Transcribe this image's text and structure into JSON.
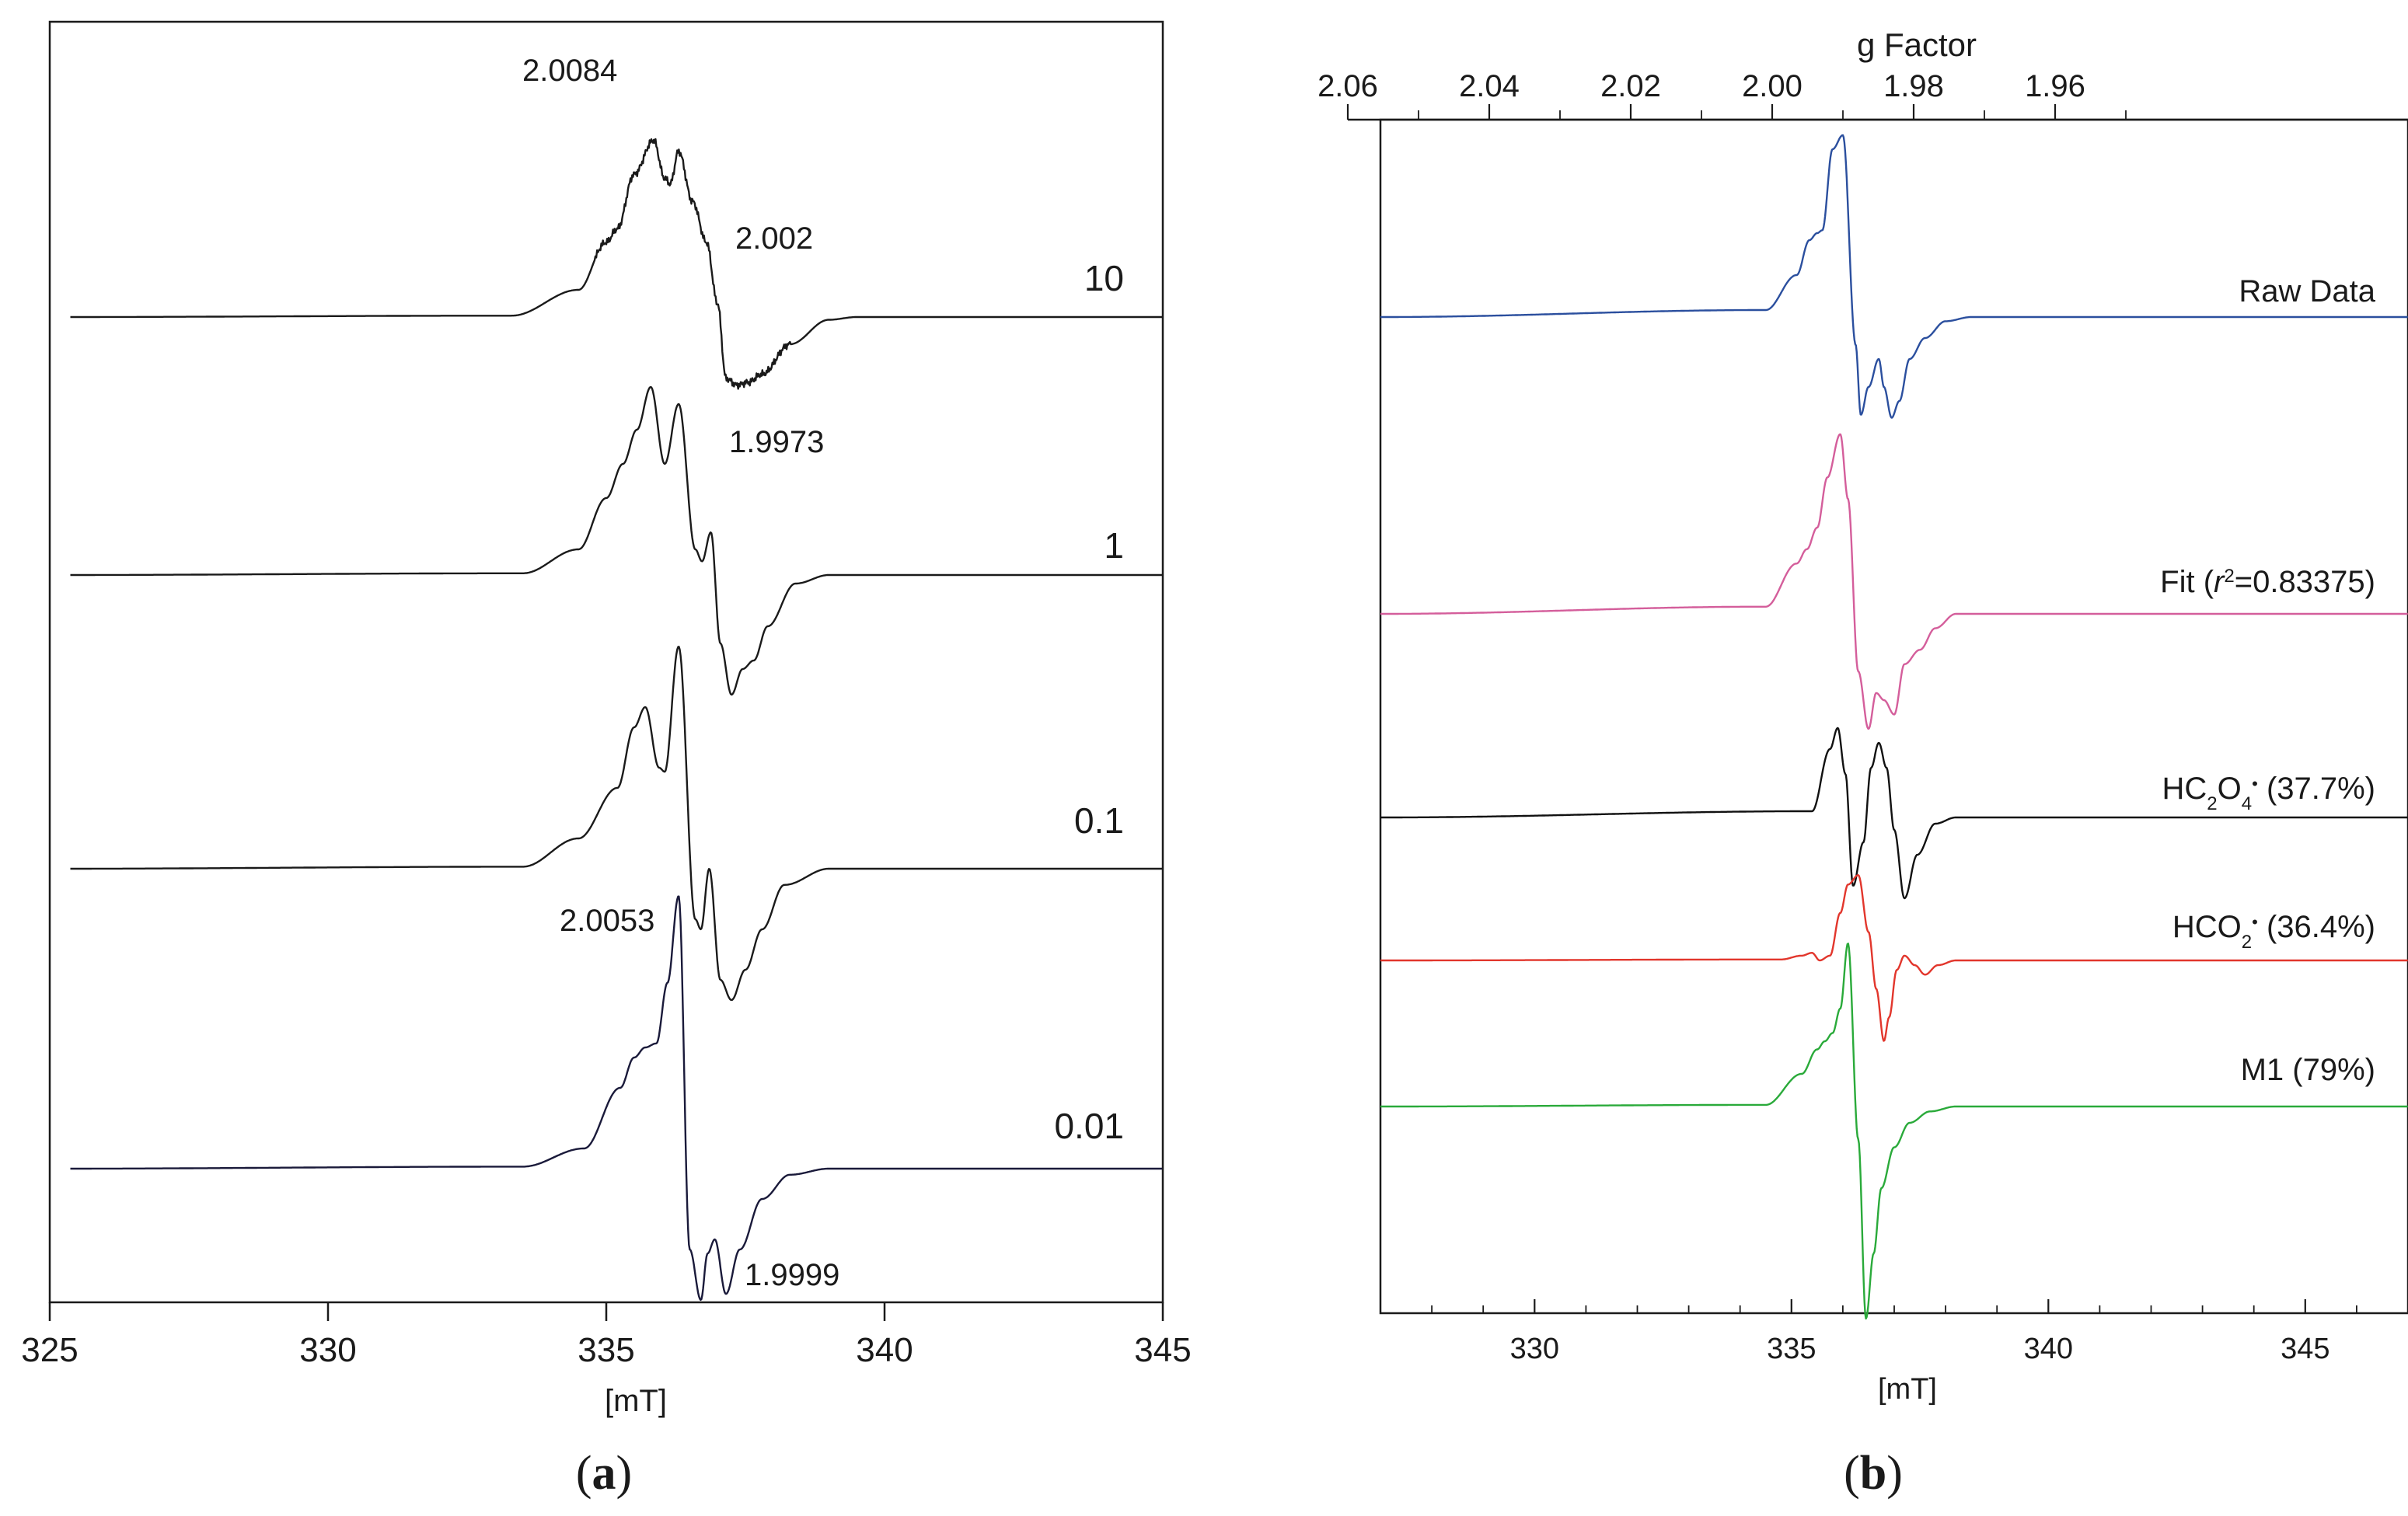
{
  "chart_data": [
    {
      "panel": "(a)",
      "panel_letter": "a",
      "type": "line",
      "x_unit_label": "[mT]",
      "xlim": [
        325,
        345
      ],
      "xticks": [
        325,
        330,
        335,
        340,
        345
      ],
      "series": [
        {
          "name": "10",
          "color": "#1a1a1a",
          "noisy": true,
          "x": [
            325,
            333.3,
            334.5,
            335.0,
            335.2,
            335.5,
            335.85,
            336.05,
            336.15,
            336.3,
            336.55,
            336.8,
            337.0,
            337.15,
            337.35,
            337.55,
            337.8,
            338.3,
            339.0,
            339.5,
            345
          ],
          "y": [
            0,
            0.01,
            0.2,
            0.55,
            0.65,
            1.05,
            1.3,
            1.02,
            0.98,
            1.22,
            0.85,
            0.55,
            0.1,
            -0.45,
            -0.5,
            -0.48,
            -0.42,
            -0.2,
            -0.02,
            0,
            0
          ]
        },
        {
          "name": "1",
          "color": "#1a1a1a",
          "noisy": false,
          "x": [
            325,
            333.5,
            334.5,
            335.0,
            335.3,
            335.55,
            335.8,
            336.05,
            336.3,
            336.6,
            336.72,
            336.88,
            337.05,
            337.25,
            337.45,
            337.65,
            337.9,
            338.4,
            339.0,
            345
          ],
          "y": [
            0,
            0.01,
            0.15,
            0.45,
            0.65,
            0.85,
            1.1,
            0.65,
            1.0,
            0.15,
            0.08,
            0.25,
            -0.4,
            -0.7,
            -0.55,
            -0.5,
            -0.3,
            -0.05,
            0,
            0
          ]
        },
        {
          "name": "0.1",
          "color": "#1a1a1a",
          "noisy": false,
          "x": [
            325,
            333.5,
            334.5,
            335.2,
            335.5,
            335.7,
            335.95,
            336.05,
            336.3,
            336.6,
            336.7,
            336.85,
            337.05,
            337.25,
            337.5,
            337.8,
            338.2,
            339.0,
            345
          ],
          "y": [
            0,
            0.01,
            0.15,
            0.4,
            0.7,
            0.8,
            0.5,
            0.48,
            1.1,
            -0.25,
            -0.3,
            0.0,
            -0.55,
            -0.65,
            -0.5,
            -0.3,
            -0.08,
            0,
            0
          ]
        },
        {
          "name": "0.01",
          "color": "#1a1a3a",
          "noisy": false,
          "x": [
            325,
            333.5,
            334.6,
            335.25,
            335.5,
            335.7,
            335.9,
            336.1,
            336.3,
            336.5,
            336.7,
            336.82,
            336.95,
            337.15,
            337.4,
            337.8,
            338.3,
            339.0,
            345
          ],
          "y": [
            0,
            0.01,
            0.1,
            0.4,
            0.55,
            0.6,
            0.62,
            0.92,
            1.35,
            -0.4,
            -0.65,
            -0.42,
            -0.35,
            -0.62,
            -0.4,
            -0.15,
            -0.03,
            0,
            0
          ]
        }
      ],
      "annotations": [
        "2.0084",
        "2.002",
        "1.9973",
        "2.0053",
        "1.9999"
      ]
    },
    {
      "panel": "(b)",
      "panel_letter": "b",
      "type": "line",
      "x_unit_label": "[mT]",
      "xlim": [
        327,
        347
      ],
      "xticks": [
        330,
        335,
        340,
        345
      ],
      "top_axis_title": "g Factor",
      "g_ticks": [
        "2.06",
        "2.04",
        "2.02",
        "2.00",
        "1.98",
        "1.96"
      ],
      "g_tick_values": [
        2.06,
        2.04,
        2.02,
        2.0,
        1.98,
        1.96
      ],
      "series": [
        {
          "name": "Raw Data",
          "color": "#2b4f9e",
          "x": [
            327,
            334.5,
            335.1,
            335.35,
            335.5,
            335.6,
            335.8,
            336.0,
            336.25,
            336.35,
            336.5,
            336.7,
            336.8,
            336.95,
            337.1,
            337.3,
            337.6,
            338.0,
            338.5,
            347
          ],
          "y": [
            0,
            0.05,
            0.3,
            0.55,
            0.6,
            0.62,
            1.2,
            1.3,
            -0.2,
            -0.7,
            -0.5,
            -0.3,
            -0.5,
            -0.72,
            -0.6,
            -0.3,
            -0.15,
            -0.03,
            0,
            0
          ]
        },
        {
          "name": "Fit",
          "color": "#d45e9b",
          "x": [
            327,
            334.5,
            335.1,
            335.3,
            335.5,
            335.7,
            335.95,
            336.1,
            336.3,
            336.5,
            336.65,
            336.8,
            337.0,
            337.2,
            337.5,
            337.8,
            338.2,
            347
          ],
          "y": [
            0,
            0.05,
            0.35,
            0.45,
            0.6,
            0.95,
            1.25,
            0.8,
            -0.4,
            -0.8,
            -0.55,
            -0.6,
            -0.7,
            -0.35,
            -0.25,
            -0.1,
            0,
            0
          ]
        },
        {
          "name": "HC2O4",
          "color": "#111111",
          "x": [
            327,
            335.4,
            335.75,
            335.9,
            336.05,
            336.2,
            336.4,
            336.55,
            336.7,
            336.85,
            337.0,
            337.2,
            337.45,
            337.8,
            338.2,
            347
          ],
          "y": [
            0,
            0.05,
            0.55,
            0.72,
            0.35,
            -0.55,
            -0.2,
            0.4,
            0.6,
            0.4,
            -0.1,
            -0.65,
            -0.3,
            -0.05,
            0,
            0
          ]
        },
        {
          "name": "HCO2",
          "color": "#e2362c",
          "x": [
            327,
            334.8,
            335.2,
            335.4,
            335.55,
            335.75,
            335.95,
            336.1,
            336.3,
            336.5,
            336.65,
            336.8,
            336.9,
            337.05,
            337.2,
            337.4,
            337.6,
            337.85,
            338.2,
            347
          ],
          "y": [
            0,
            0.01,
            0.05,
            0.08,
            0.0,
            0.05,
            0.5,
            0.8,
            0.9,
            0.3,
            -0.3,
            -0.85,
            -0.6,
            -0.1,
            0.05,
            -0.05,
            -0.15,
            -0.05,
            0,
            0
          ]
        },
        {
          "name": "M1",
          "color": "#2aaa3a",
          "x": [
            327,
            334.5,
            335.2,
            335.5,
            335.65,
            335.8,
            335.95,
            336.1,
            336.3,
            336.45,
            336.6,
            336.75,
            337.0,
            337.3,
            337.7,
            338.2,
            347
          ],
          "y": [
            0,
            0.01,
            0.2,
            0.35,
            0.4,
            0.45,
            0.6,
            1.0,
            -0.2,
            -1.3,
            -0.9,
            -0.5,
            -0.25,
            -0.1,
            -0.03,
            0,
            0
          ]
        }
      ],
      "trace_labels": {
        "raw": "Raw Data",
        "fit_prefix": "Fit (",
        "fit_r": "r",
        "fit_sup": "2",
        "fit_suffix": "=0.83375)",
        "hc2o4_main": "HC",
        "hc2o4_sub1": "2",
        "hc2o4_mid": "O",
        "hc2o4_sub2": "4",
        "hc2o4_dot": "•",
        "hc2o4_pct": " (37.7%)",
        "hco2_main": "HCO",
        "hco2_sub": "2",
        "hco2_dot": "•",
        "hco2_pct": " (36.4%)",
        "m1": "M1 (79%)"
      }
    }
  ]
}
